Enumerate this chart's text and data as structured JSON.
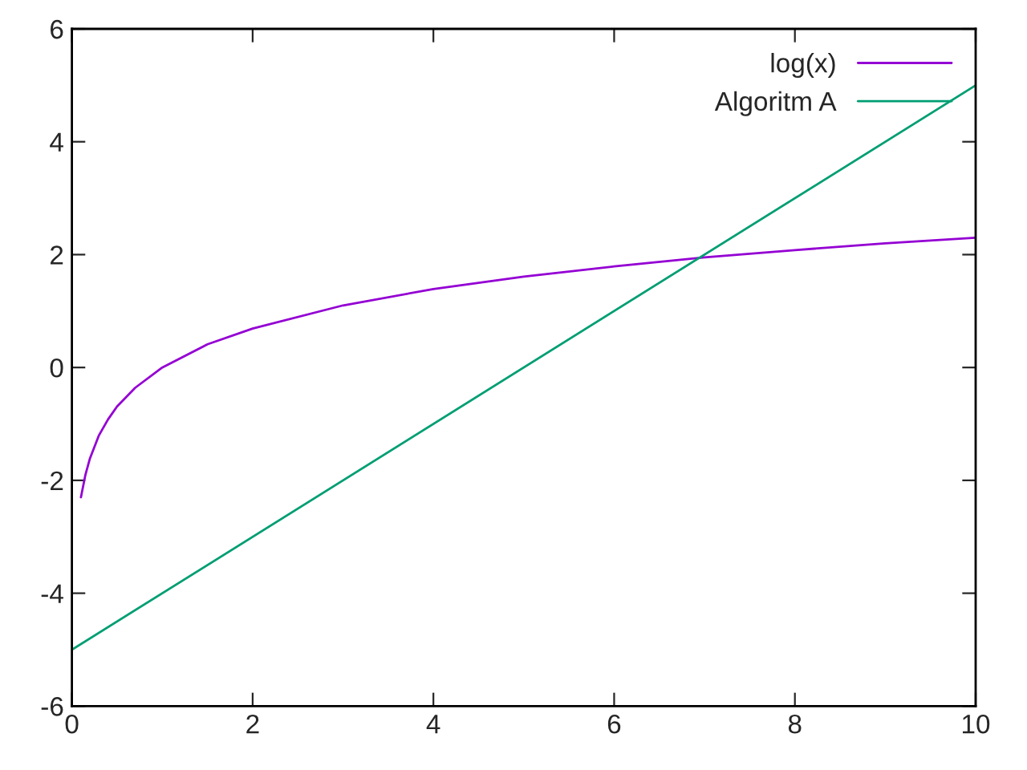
{
  "chart_data": {
    "type": "line",
    "series": [
      {
        "name": "log(x)",
        "color": "#9400d3",
        "x": [
          0.1,
          0.15,
          0.2,
          0.3,
          0.4,
          0.5,
          0.7,
          1,
          1.5,
          2,
          3,
          4,
          5,
          6,
          7,
          8,
          9,
          10
        ],
        "values": [
          -2.3,
          -1.9,
          -1.61,
          -1.2,
          -0.92,
          -0.69,
          -0.36,
          0,
          0.41,
          0.69,
          1.1,
          1.39,
          1.61,
          1.79,
          1.95,
          2.08,
          2.2,
          2.3
        ]
      },
      {
        "name": "Algoritm A",
        "color": "#009e73",
        "x": [
          0,
          10
        ],
        "values": [
          -5,
          5
        ]
      }
    ],
    "xlim": [
      0,
      10
    ],
    "ylim": [
      -6,
      6
    ],
    "xticks": [
      0,
      2,
      4,
      6,
      8,
      10
    ],
    "yticks": [
      -6,
      -4,
      -2,
      0,
      2,
      4,
      6
    ],
    "grid": false,
    "legend": "top right",
    "marker": "none",
    "line_style": "solid"
  }
}
